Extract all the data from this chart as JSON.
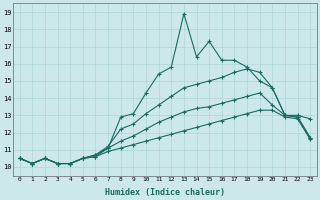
{
  "title": "",
  "xlabel": "Humidex (Indice chaleur)",
  "xlim": [
    -0.5,
    23.5
  ],
  "ylim": [
    9.5,
    19.5
  ],
  "xticks": [
    0,
    1,
    2,
    3,
    4,
    5,
    6,
    7,
    8,
    9,
    10,
    11,
    12,
    13,
    14,
    15,
    16,
    17,
    18,
    19,
    20,
    21,
    22,
    23
  ],
  "yticks": [
    10,
    11,
    12,
    13,
    14,
    15,
    16,
    17,
    18,
    19
  ],
  "bg_color": "#cce8eb",
  "grid_color": "#aed4d8",
  "line_color": "#1a6b60",
  "line_width": 0.8,
  "marker": "+",
  "marker_size": 3,
  "marker_lw": 0.8,
  "curves": [
    {
      "x": [
        0,
        1,
        2,
        3,
        4,
        5,
        6,
        7,
        8,
        9,
        10,
        11,
        12,
        13,
        14,
        15,
        16,
        17,
        18,
        19,
        20,
        21,
        22,
        23
      ],
      "y": [
        10.5,
        10.2,
        10.5,
        10.2,
        10.2,
        10.5,
        10.6,
        11.1,
        12.9,
        13.1,
        14.3,
        15.4,
        15.8,
        18.9,
        16.4,
        17.3,
        16.2,
        16.2,
        15.8,
        15.0,
        14.6,
        13.0,
        13.0,
        12.8
      ]
    },
    {
      "x": [
        0,
        1,
        2,
        3,
        4,
        5,
        6,
        7,
        8,
        9,
        10,
        11,
        12,
        13,
        14,
        15,
        16,
        17,
        18,
        19,
        20,
        21,
        22,
        23
      ],
      "y": [
        10.5,
        10.2,
        10.5,
        10.2,
        10.2,
        10.5,
        10.7,
        11.2,
        12.2,
        12.5,
        13.1,
        13.6,
        14.1,
        14.6,
        14.8,
        15.0,
        15.2,
        15.5,
        15.7,
        15.5,
        14.6,
        13.0,
        12.9,
        11.7
      ]
    },
    {
      "x": [
        0,
        1,
        2,
        3,
        4,
        5,
        6,
        7,
        8,
        9,
        10,
        11,
        12,
        13,
        14,
        15,
        16,
        17,
        18,
        19,
        20,
        21,
        22,
        23
      ],
      "y": [
        10.5,
        10.2,
        10.5,
        10.2,
        10.2,
        10.5,
        10.7,
        11.1,
        11.5,
        11.8,
        12.2,
        12.6,
        12.9,
        13.2,
        13.4,
        13.5,
        13.7,
        13.9,
        14.1,
        14.3,
        13.6,
        13.0,
        12.9,
        11.7
      ]
    },
    {
      "x": [
        0,
        1,
        2,
        3,
        4,
        5,
        6,
        7,
        8,
        9,
        10,
        11,
        12,
        13,
        14,
        15,
        16,
        17,
        18,
        19,
        20,
        21,
        22,
        23
      ],
      "y": [
        10.5,
        10.2,
        10.5,
        10.2,
        10.2,
        10.5,
        10.6,
        10.9,
        11.1,
        11.3,
        11.5,
        11.7,
        11.9,
        12.1,
        12.3,
        12.5,
        12.7,
        12.9,
        13.1,
        13.3,
        13.3,
        12.9,
        12.8,
        11.6
      ]
    }
  ]
}
